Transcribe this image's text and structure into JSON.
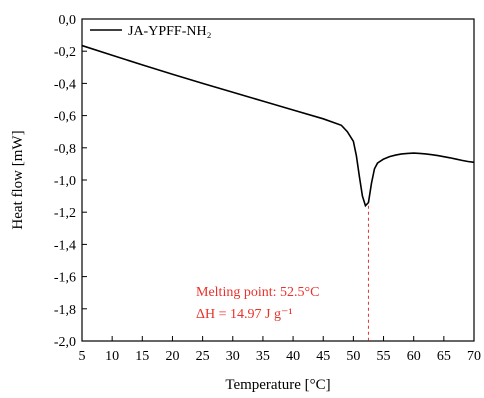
{
  "chart_data": {
    "type": "line",
    "x": [
      5,
      10,
      15,
      20,
      25,
      30,
      35,
      40,
      45,
      48,
      49,
      50,
      50.5,
      51,
      51.5,
      52,
      52.5,
      53,
      53.5,
      54,
      55,
      56,
      57,
      58,
      59,
      60,
      61,
      62,
      63,
      64,
      65,
      66,
      67,
      68,
      69,
      70
    ],
    "series": [
      {
        "name": "JA-YPFF-NH₂",
        "values": [
          -0.165,
          -0.225,
          -0.285,
          -0.343,
          -0.4,
          -0.455,
          -0.51,
          -0.565,
          -0.62,
          -0.66,
          -0.7,
          -0.76,
          -0.85,
          -0.98,
          -1.1,
          -1.16,
          -1.14,
          -1.02,
          -0.93,
          -0.895,
          -0.87,
          -0.855,
          -0.845,
          -0.838,
          -0.835,
          -0.833,
          -0.835,
          -0.838,
          -0.843,
          -0.848,
          -0.855,
          -0.862,
          -0.87,
          -0.878,
          -0.885,
          -0.89
        ],
        "color": "#000000"
      }
    ],
    "xlabel": "Temperature [°C]",
    "ylabel": "Heat flow [mW]",
    "xlim": [
      5,
      70
    ],
    "ylim": [
      -2.0,
      0.0
    ],
    "xticks": [
      5,
      10,
      15,
      20,
      25,
      30,
      35,
      40,
      45,
      50,
      55,
      60,
      65,
      70
    ],
    "yticks": [
      "0,0",
      "-0,2",
      "-0,4",
      "-0,6",
      "-0,8",
      "-1,0",
      "-1,2",
      "-1,4",
      "-1,6",
      "-1,8",
      "-2,0"
    ],
    "yticks_values": [
      0.0,
      -0.2,
      -0.4,
      -0.6,
      -0.8,
      -1.0,
      -1.2,
      -1.4,
      -1.6,
      -1.8,
      -2.0
    ],
    "grid": false,
    "legend_position": "top-left",
    "annotations": [
      {
        "text": "Melting point: 52.5°C",
        "color": "#e8322b"
      },
      {
        "text": "ΔH = 14.97 J g⁻¹",
        "color": "#e8322b"
      }
    ],
    "marker_x": 52.5,
    "marker_color": "#e8322b"
  }
}
